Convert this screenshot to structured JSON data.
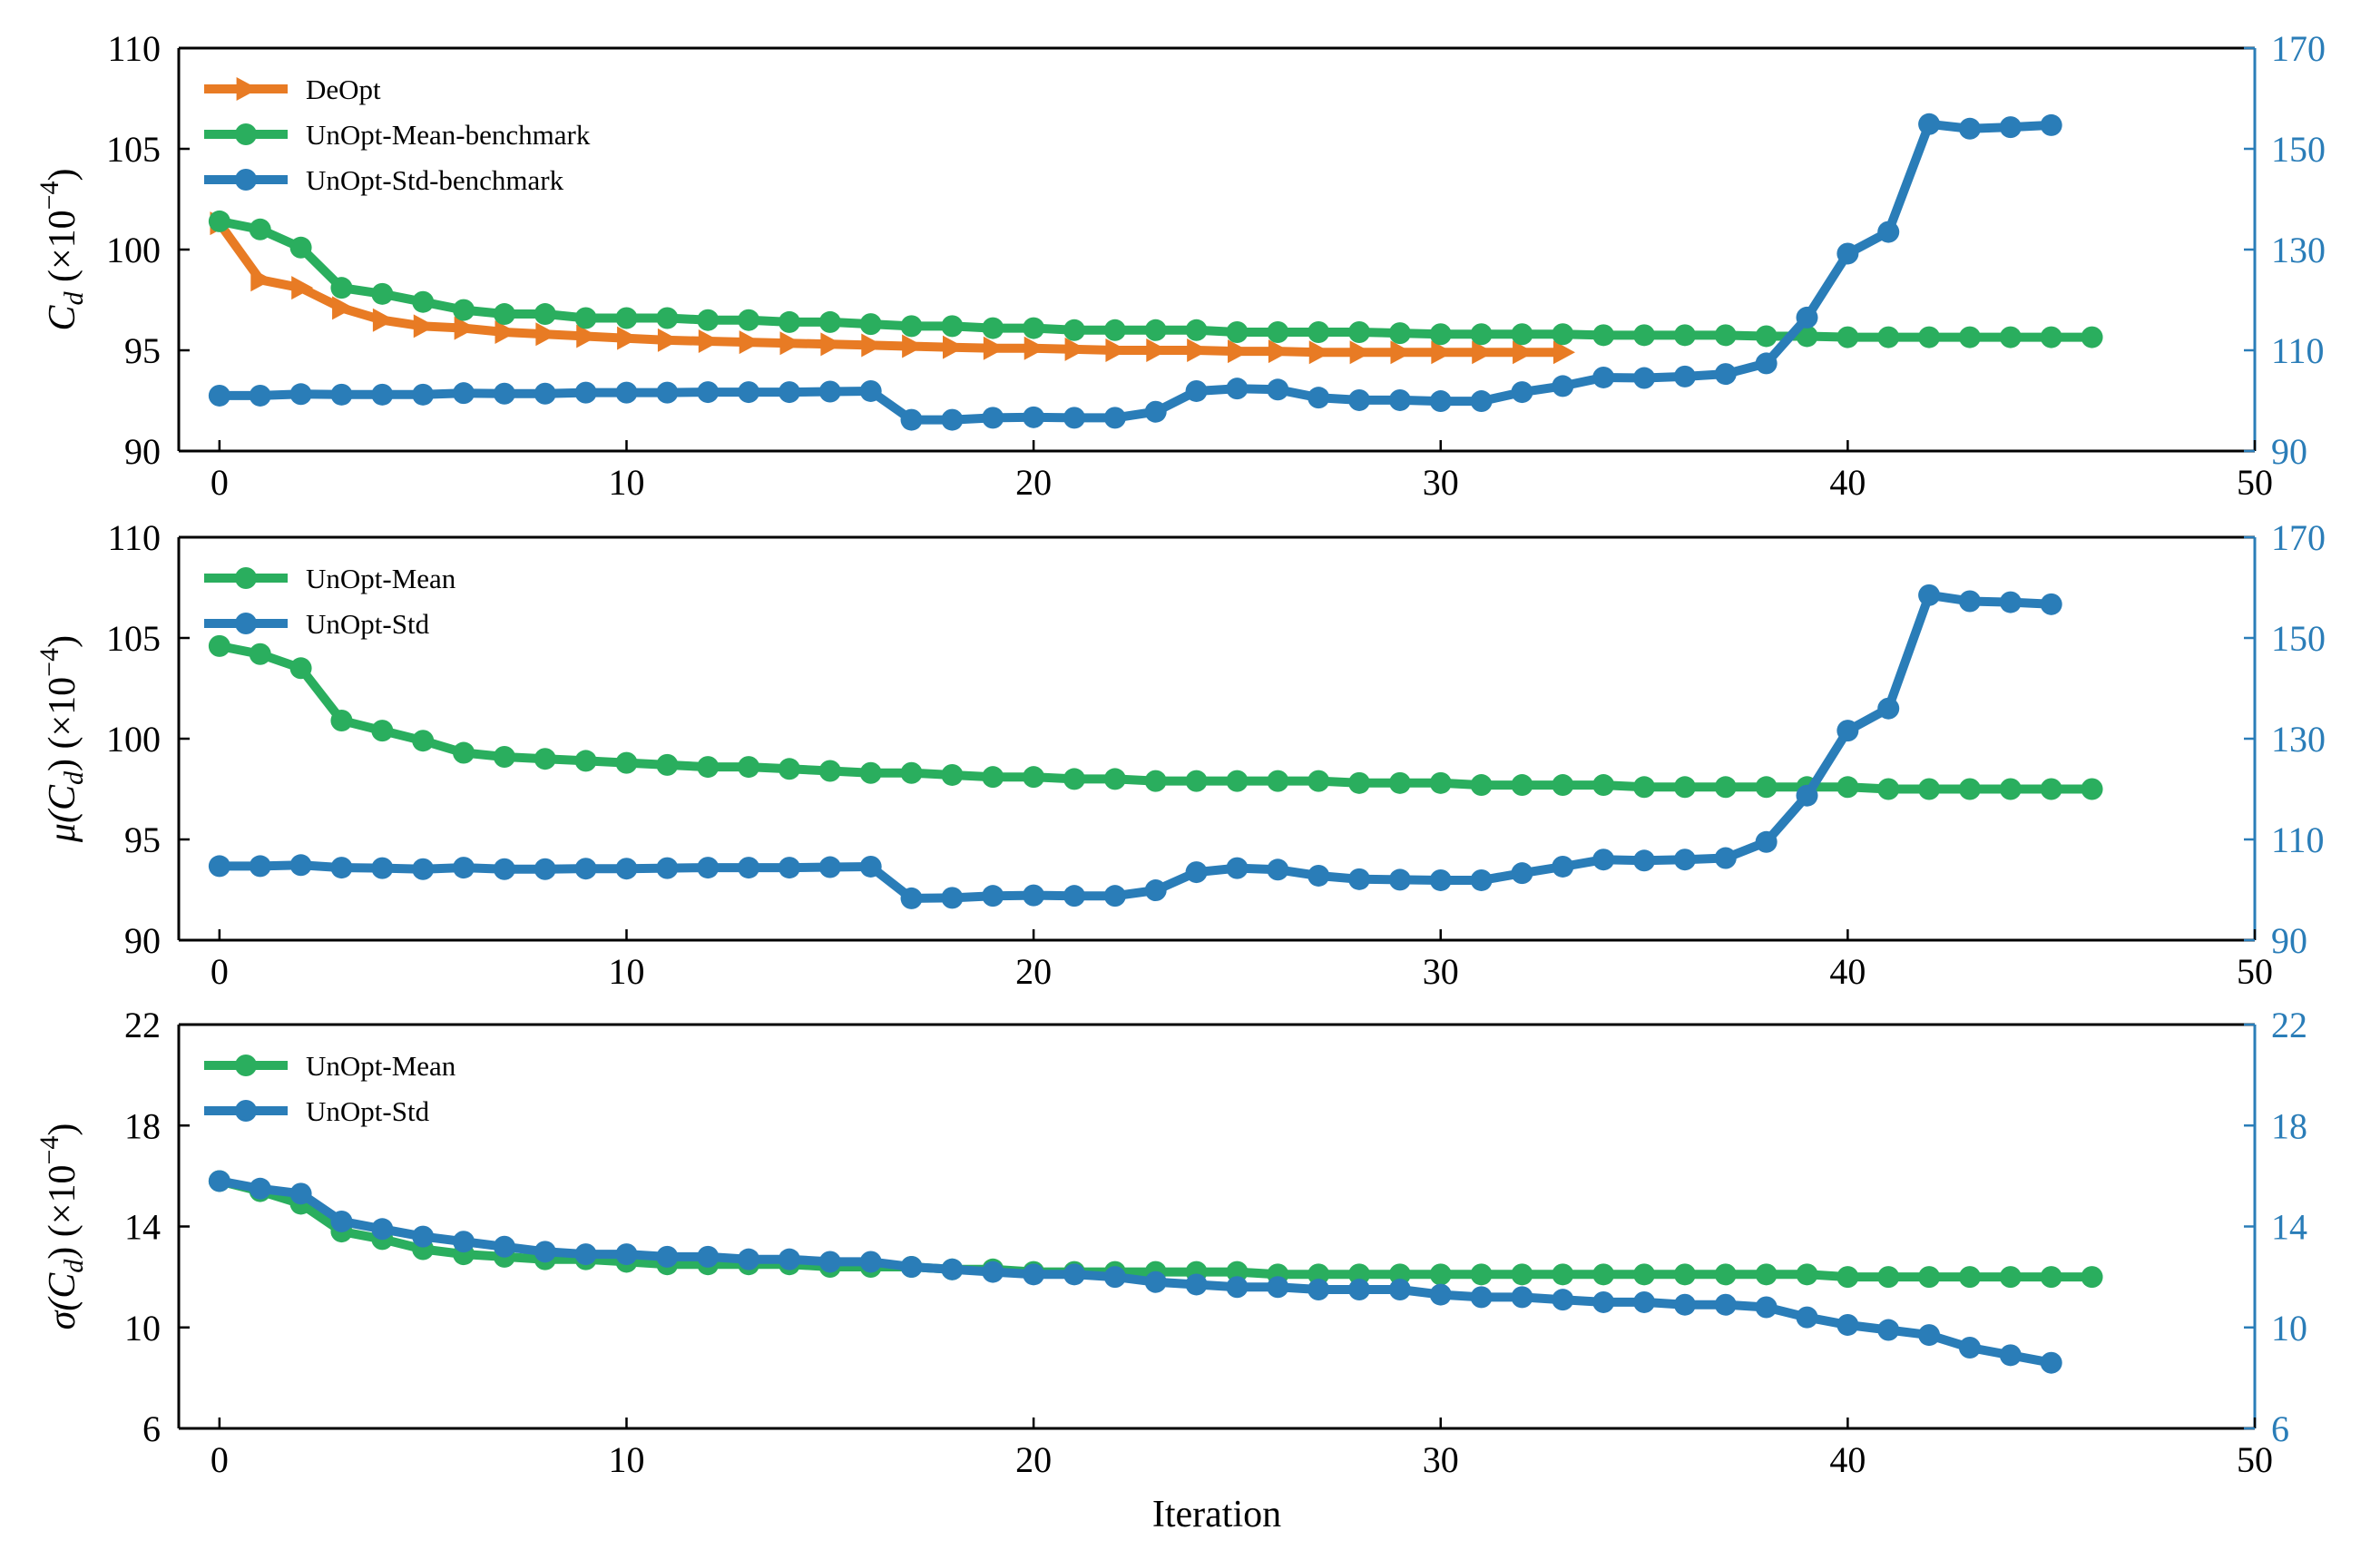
{
  "colors": {
    "deopt": "#E87B24",
    "mean": "#2AAE5E",
    "std": "#2A7DB8",
    "right_axis": "#2A7DB8"
  },
  "chart_data": [
    {
      "type": "line",
      "panel": "top",
      "ylabel": "C_d (×10^-4)",
      "ylabel_parts": {
        "sym": "C",
        "sub": "d",
        "unit": " (×10",
        "exp": "−4",
        "close": ")"
      },
      "xlim": [
        -1,
        50
      ],
      "xticks": [
        0,
        10,
        20,
        30,
        40,
        50
      ],
      "ylim": [
        90,
        110
      ],
      "yticks": [
        90,
        95,
        100,
        105,
        110
      ],
      "y2lim": [
        90,
        170
      ],
      "y2ticks": [
        90,
        110,
        130,
        150,
        170
      ],
      "legend_position": "upper-left",
      "series": [
        {
          "name": "DeOpt",
          "color": "#E87B24",
          "marker": "triangle-right",
          "axis": "left",
          "x": [
            0,
            1,
            2,
            3,
            4,
            5,
            6,
            7,
            8,
            9,
            10,
            11,
            12,
            13,
            14,
            15,
            16,
            17,
            18,
            19,
            20,
            21,
            22,
            23,
            24,
            25,
            26,
            27,
            28,
            29,
            30,
            31,
            32,
            33
          ],
          "values": [
            101.3,
            98.5,
            98.1,
            97.1,
            96.5,
            96.2,
            96.1,
            95.9,
            95.8,
            95.7,
            95.6,
            95.5,
            95.45,
            95.4,
            95.35,
            95.3,
            95.25,
            95.2,
            95.15,
            95.1,
            95.1,
            95.05,
            95.0,
            95.0,
            95.0,
            94.95,
            94.95,
            94.9,
            94.9,
            94.9,
            94.9,
            94.9,
            94.9,
            94.9
          ]
        },
        {
          "name": "UnOpt-Mean-benchmark",
          "color": "#2AAE5E",
          "marker": "circle",
          "axis": "left",
          "x": [
            0,
            1,
            2,
            3,
            4,
            5,
            6,
            7,
            8,
            9,
            10,
            11,
            12,
            13,
            14,
            15,
            16,
            17,
            18,
            19,
            20,
            21,
            22,
            23,
            24,
            25,
            26,
            27,
            28,
            29,
            30,
            31,
            32,
            33,
            34,
            35,
            36,
            37,
            38,
            39,
            40,
            41,
            42,
            43,
            44,
            45,
            46
          ],
          "values": [
            101.4,
            101.0,
            100.1,
            98.1,
            97.8,
            97.4,
            97.0,
            96.8,
            96.8,
            96.6,
            96.6,
            96.6,
            96.5,
            96.5,
            96.4,
            96.4,
            96.3,
            96.2,
            96.2,
            96.1,
            96.1,
            96.0,
            96.0,
            96.0,
            96.0,
            95.9,
            95.9,
            95.9,
            95.9,
            95.85,
            95.8,
            95.8,
            95.8,
            95.8,
            95.75,
            95.75,
            95.75,
            95.75,
            95.7,
            95.7,
            95.65,
            95.65,
            95.65,
            95.65,
            95.65,
            95.65,
            95.65
          ]
        },
        {
          "name": "UnOpt-Std-benchmark",
          "color": "#2A7DB8",
          "marker": "circle",
          "axis": "right",
          "x": [
            0,
            1,
            2,
            3,
            4,
            5,
            6,
            7,
            8,
            9,
            10,
            11,
            12,
            13,
            14,
            15,
            16,
            17,
            18,
            19,
            20,
            21,
            22,
            23,
            24,
            25,
            26,
            27,
            28,
            29,
            30,
            31,
            32,
            33,
            34,
            35,
            36,
            37,
            38,
            39,
            40,
            41,
            42,
            43,
            44,
            45
          ],
          "values": [
            101,
            101,
            101.3,
            101.2,
            101.2,
            101.2,
            101.5,
            101.4,
            101.4,
            101.6,
            101.6,
            101.6,
            101.7,
            101.7,
            101.7,
            101.8,
            101.9,
            96.2,
            96.2,
            96.6,
            96.7,
            96.6,
            96.6,
            97.8,
            101.9,
            102.4,
            102.2,
            100.6,
            100.1,
            100.1,
            99.9,
            99.9,
            101.7,
            102.9,
            104.6,
            104.5,
            104.8,
            105.3,
            107.4,
            116.5,
            129.2,
            133.5,
            154.9,
            154.0,
            154.3,
            154.7
          ]
        }
      ]
    },
    {
      "type": "line",
      "panel": "middle",
      "ylabel": "μ(C_d) (×10^-4)",
      "ylabel_parts": {
        "sym": "μ(C",
        "sub": "d",
        "unit": ") (×10",
        "exp": "−4",
        "close": ")"
      },
      "xlim": [
        -1,
        50
      ],
      "xticks": [
        0,
        10,
        20,
        30,
        40,
        50
      ],
      "ylim": [
        90,
        110
      ],
      "yticks": [
        90,
        95,
        100,
        105,
        110
      ],
      "y2lim": [
        90,
        170
      ],
      "y2ticks": [
        90,
        110,
        130,
        150,
        170
      ],
      "legend_position": "upper-left",
      "series": [
        {
          "name": "UnOpt-Mean",
          "color": "#2AAE5E",
          "marker": "circle",
          "axis": "left",
          "x": [
            0,
            1,
            2,
            3,
            4,
            5,
            6,
            7,
            8,
            9,
            10,
            11,
            12,
            13,
            14,
            15,
            16,
            17,
            18,
            19,
            20,
            21,
            22,
            23,
            24,
            25,
            26,
            27,
            28,
            29,
            30,
            31,
            32,
            33,
            34,
            35,
            36,
            37,
            38,
            39,
            40,
            41,
            42,
            43,
            44,
            45,
            46
          ],
          "values": [
            104.6,
            104.2,
            103.5,
            100.9,
            100.4,
            99.9,
            99.3,
            99.1,
            99.0,
            98.9,
            98.8,
            98.7,
            98.6,
            98.6,
            98.5,
            98.4,
            98.3,
            98.3,
            98.2,
            98.1,
            98.1,
            98.0,
            98.0,
            97.9,
            97.9,
            97.9,
            97.9,
            97.9,
            97.8,
            97.8,
            97.8,
            97.7,
            97.7,
            97.7,
            97.7,
            97.6,
            97.6,
            97.6,
            97.6,
            97.6,
            97.6,
            97.5,
            97.5,
            97.5,
            97.5,
            97.5,
            97.5
          ]
        },
        {
          "name": "UnOpt-Std",
          "color": "#2A7DB8",
          "marker": "circle",
          "axis": "right",
          "x": [
            0,
            1,
            2,
            3,
            4,
            5,
            6,
            7,
            8,
            9,
            10,
            11,
            12,
            13,
            14,
            15,
            16,
            17,
            18,
            19,
            20,
            21,
            22,
            23,
            24,
            25,
            26,
            27,
            28,
            29,
            30,
            31,
            32,
            33,
            34,
            35,
            36,
            37,
            38,
            39,
            40,
            41,
            42,
            43,
            44,
            45
          ],
          "values": [
            104.7,
            104.7,
            104.9,
            104.4,
            104.3,
            104.1,
            104.4,
            104.1,
            104.1,
            104.2,
            104.2,
            104.3,
            104.4,
            104.4,
            104.4,
            104.5,
            104.6,
            98.3,
            98.4,
            98.8,
            98.9,
            98.8,
            98.8,
            99.9,
            103.5,
            104.3,
            104.0,
            102.8,
            102.1,
            102.0,
            101.9,
            101.9,
            103.3,
            104.6,
            106.0,
            105.8,
            106.0,
            106.3,
            109.5,
            118.7,
            131.6,
            136.0,
            158.5,
            157.3,
            157.1,
            156.7
          ]
        }
      ]
    },
    {
      "type": "line",
      "panel": "bottom",
      "ylabel": "σ(C_d) (×10^-4)",
      "ylabel_parts": {
        "sym": "σ(C",
        "sub": "d",
        "unit": ") (×10",
        "exp": "−4",
        "close": ")"
      },
      "xlabel": "Iteration",
      "xlim": [
        -1,
        50
      ],
      "xticks": [
        0,
        10,
        20,
        30,
        40,
        50
      ],
      "ylim": [
        6,
        22
      ],
      "yticks": [
        6,
        10,
        14,
        18,
        22
      ],
      "y2lim": [
        6,
        22
      ],
      "y2ticks": [
        6,
        10,
        14,
        18,
        22
      ],
      "legend_position": "upper-left",
      "series": [
        {
          "name": "UnOpt-Mean",
          "color": "#2AAE5E",
          "marker": "circle",
          "axis": "left",
          "x": [
            0,
            1,
            2,
            3,
            4,
            5,
            6,
            7,
            8,
            9,
            10,
            11,
            12,
            13,
            14,
            15,
            16,
            17,
            18,
            19,
            20,
            21,
            22,
            23,
            24,
            25,
            26,
            27,
            28,
            29,
            30,
            31,
            32,
            33,
            34,
            35,
            36,
            37,
            38,
            39,
            40,
            41,
            42,
            43,
            44,
            45,
            46
          ],
          "values": [
            15.8,
            15.4,
            14.9,
            13.8,
            13.5,
            13.1,
            12.9,
            12.8,
            12.7,
            12.7,
            12.6,
            12.5,
            12.5,
            12.5,
            12.5,
            12.4,
            12.4,
            12.4,
            12.3,
            12.3,
            12.2,
            12.2,
            12.2,
            12.2,
            12.2,
            12.2,
            12.1,
            12.1,
            12.1,
            12.1,
            12.1,
            12.1,
            12.1,
            12.1,
            12.1,
            12.1,
            12.1,
            12.1,
            12.1,
            12.1,
            12.0,
            12.0,
            12.0,
            12.0,
            12.0,
            12.0,
            12.0
          ]
        },
        {
          "name": "UnOpt-Std",
          "color": "#2A7DB8",
          "marker": "circle",
          "axis": "right",
          "x": [
            0,
            1,
            2,
            3,
            4,
            5,
            6,
            7,
            8,
            9,
            10,
            11,
            12,
            13,
            14,
            15,
            16,
            17,
            18,
            19,
            20,
            21,
            22,
            23,
            24,
            25,
            26,
            27,
            28,
            29,
            30,
            31,
            32,
            33,
            34,
            35,
            36,
            37,
            38,
            39,
            40,
            41,
            42,
            43,
            44,
            45
          ],
          "values": [
            15.8,
            15.5,
            15.3,
            14.2,
            13.9,
            13.6,
            13.4,
            13.2,
            13.0,
            12.9,
            12.9,
            12.8,
            12.8,
            12.7,
            12.7,
            12.6,
            12.6,
            12.4,
            12.3,
            12.2,
            12.1,
            12.1,
            12.0,
            11.8,
            11.7,
            11.6,
            11.6,
            11.5,
            11.5,
            11.5,
            11.3,
            11.2,
            11.2,
            11.1,
            11.0,
            11.0,
            10.9,
            10.9,
            10.8,
            10.4,
            10.1,
            9.9,
            9.7,
            9.2,
            8.9,
            8.6
          ]
        }
      ]
    }
  ]
}
